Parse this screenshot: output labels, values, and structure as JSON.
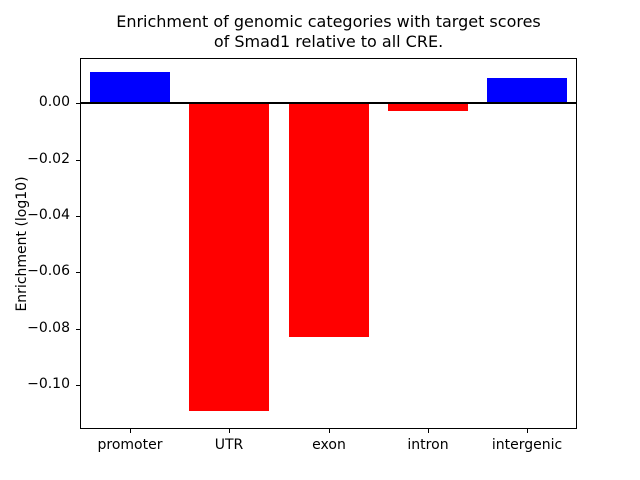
{
  "chart_data": {
    "type": "bar",
    "title": "Enrichment of genomic categories with target scores\nof Smad1 relative to all CRE.",
    "ylabel": "Enrichment (log10)",
    "xlabel": "",
    "categories": [
      "promoter",
      "UTR",
      "exon",
      "intron",
      "intergenic"
    ],
    "values": [
      0.011,
      -0.109,
      -0.083,
      -0.003,
      0.009
    ],
    "ylim": [
      -0.1155,
      0.016
    ],
    "yticks": [
      0.0,
      -0.02,
      -0.04,
      -0.06,
      -0.08,
      -0.1
    ],
    "positive_color": "#0000ff",
    "negative_color": "#ff0000",
    "axis_color": "#000000",
    "zero_line": true,
    "grid": false,
    "legend_position": "none"
  }
}
